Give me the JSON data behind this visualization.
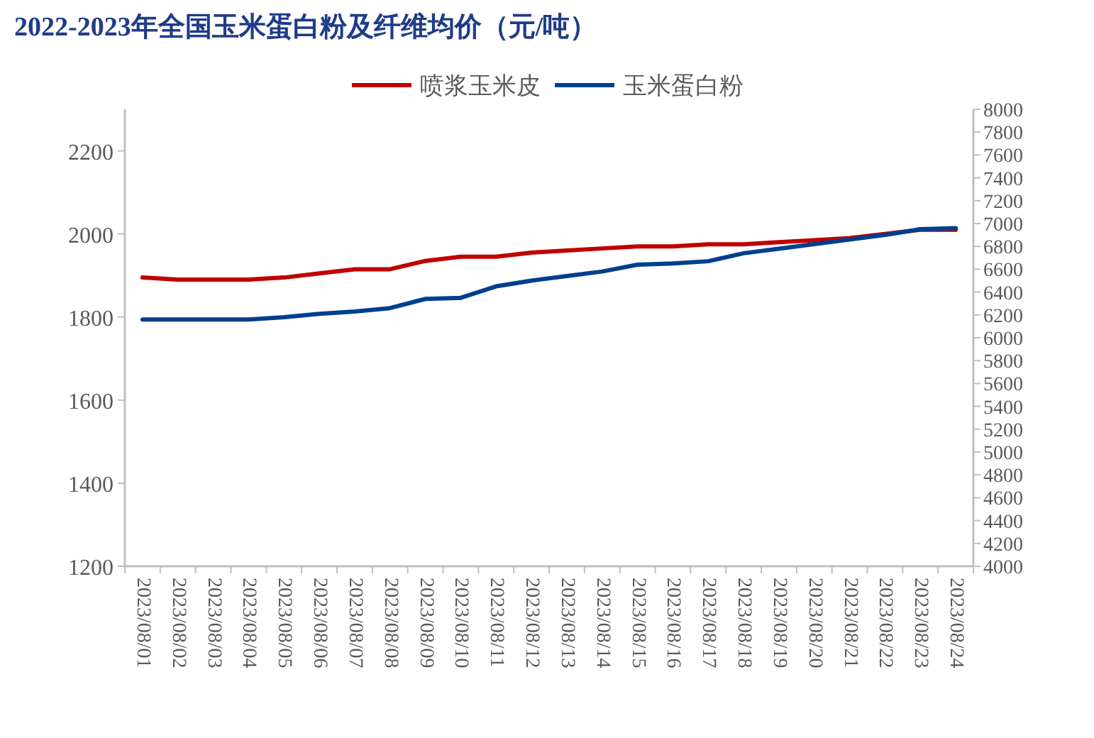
{
  "chart_data": {
    "type": "line",
    "title": "2022-2023年全国玉米蛋白粉及纤维均价（元/吨）",
    "categories": [
      "2023/08/01",
      "2023/08/02",
      "2023/08/03",
      "2023/08/04",
      "2023/08/05",
      "2023/08/06",
      "2023/08/07",
      "2023/08/08",
      "2023/08/09",
      "2023/08/10",
      "2023/08/11",
      "2023/08/12",
      "2023/08/13",
      "2023/08/14",
      "2023/08/15",
      "2023/08/16",
      "2023/08/17",
      "2023/08/18",
      "2023/08/19",
      "2023/08/20",
      "2023/08/21",
      "2023/08/22",
      "2023/08/23",
      "2023/08/24"
    ],
    "series": [
      {
        "name": "喷浆玉米皮",
        "color": "#c00000",
        "values": [
          1895,
          1890,
          1890,
          1890,
          1895,
          1905,
          1915,
          1915,
          1935,
          1945,
          1945,
          1955,
          1960,
          1965,
          1970,
          1970,
          1975,
          1975,
          1980,
          1985,
          1990,
          2000,
          2010,
          2010
        ]
      },
      {
        "name": "玉米蛋白粉",
        "color": "#003f8f",
        "axis": "y2",
        "values": [
          6160,
          6160,
          6160,
          6160,
          6180,
          6210,
          6230,
          6260,
          6340,
          6350,
          6450,
          6500,
          6540,
          6580,
          6640,
          6650,
          6670,
          6740,
          6780,
          6820,
          6860,
          6900,
          6950,
          6960
        ]
      }
    ],
    "ylim": [
      1200,
      2300
    ],
    "yticks": [
      1200,
      1400,
      1600,
      1800,
      2000,
      2200
    ],
    "y2lim": [
      4000,
      8000
    ],
    "y2ticks": [
      4000,
      4200,
      4400,
      4600,
      4800,
      5000,
      5200,
      5400,
      5600,
      5800,
      6000,
      6200,
      6400,
      6600,
      6800,
      7000,
      7200,
      7400,
      7600,
      7800,
      8000
    ],
    "legend": "top",
    "grid": false
  }
}
